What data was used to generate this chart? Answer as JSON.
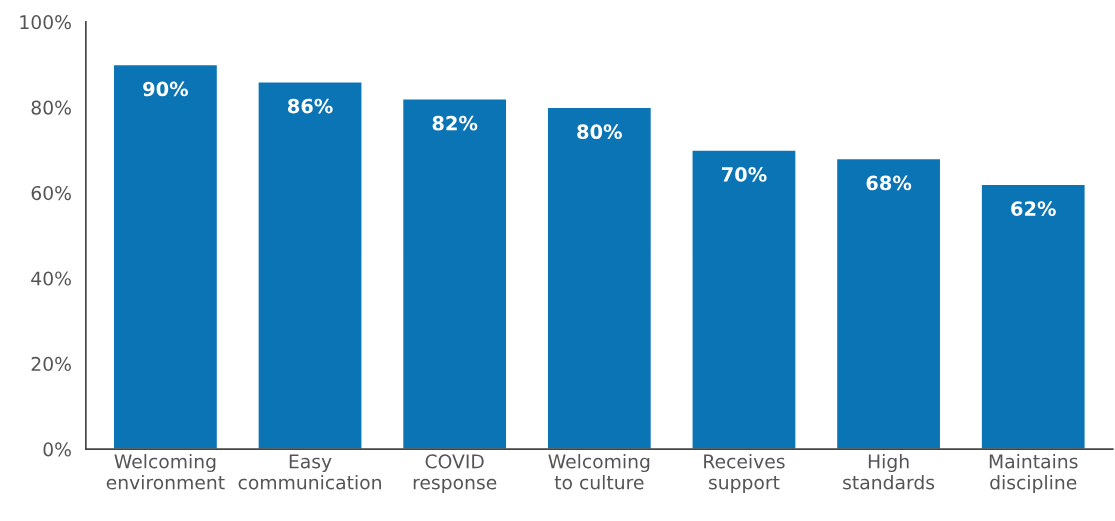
{
  "chart_data": {
    "type": "bar",
    "categories": [
      "Welcoming\nenvironment",
      "Easy\ncommunication",
      "COVID\nresponse",
      "Welcoming\nto culture",
      "Receives\nsupport",
      "High\nstandards",
      "Maintains\ndiscipline"
    ],
    "values": [
      90,
      86,
      82,
      80,
      70,
      68,
      62
    ],
    "value_labels": [
      "90%",
      "86%",
      "82%",
      "80%",
      "70%",
      "68%",
      "62%"
    ],
    "color": "#0b74b4",
    "ylim": [
      0,
      100
    ],
    "yticks": [
      {
        "value": 0,
        "label": "0%"
      },
      {
        "value": 20,
        "label": "20%"
      },
      {
        "value": 40,
        "label": "40%"
      },
      {
        "value": 60,
        "label": "60%"
      },
      {
        "value": 80,
        "label": "80%"
      },
      {
        "value": 100,
        "label": "100%"
      }
    ],
    "grid": false
  }
}
